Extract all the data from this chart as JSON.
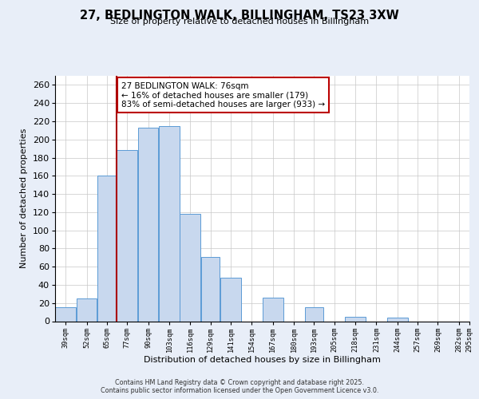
{
  "title": "27, BEDLINGTON WALK, BILLINGHAM, TS23 3XW",
  "subtitle": "Size of property relative to detached houses in Billingham",
  "xlabel": "Distribution of detached houses by size in Billingham",
  "ylabel": "Number of detached properties",
  "bar_lefts": [
    39,
    52,
    65,
    77,
    90,
    103,
    116,
    129,
    141,
    154,
    167,
    180,
    193,
    205,
    218,
    231,
    244,
    257,
    269,
    282
  ],
  "bar_widths": [
    13,
    13,
    12,
    13,
    13,
    13,
    13,
    12,
    13,
    13,
    13,
    13,
    12,
    13,
    13,
    13,
    13,
    12,
    13,
    13
  ],
  "bar_heights": [
    15,
    25,
    160,
    188,
    213,
    215,
    118,
    71,
    48,
    0,
    26,
    0,
    15,
    0,
    5,
    0,
    4,
    0,
    0,
    0
  ],
  "bar_color": "#c8d8ee",
  "bar_edge_color": "#5b9bd5",
  "marker_x": 77,
  "marker_color": "#aa0000",
  "ylim": [
    0,
    270
  ],
  "xlim": [
    39,
    295
  ],
  "yticks": [
    0,
    20,
    40,
    60,
    80,
    100,
    120,
    140,
    160,
    180,
    200,
    220,
    240,
    260
  ],
  "annotation_text_line1": "27 BEDLINGTON WALK: 76sqm",
  "annotation_text_line2": "← 16% of detached houses are smaller (179)",
  "annotation_text_line3": "83% of semi-detached houses are larger (933) →",
  "footer_line1": "Contains HM Land Registry data © Crown copyright and database right 2025.",
  "footer_line2": "Contains public sector information licensed under the Open Government Licence v3.0.",
  "bg_color": "#e8eef8",
  "plot_bg_color": "#ffffff",
  "grid_color": "#c8c8c8",
  "tick_labels": [
    "39sqm",
    "52sqm",
    "65sqm",
    "77sqm",
    "90sqm",
    "103sqm",
    "116sqm",
    "129sqm",
    "141sqm",
    "154sqm",
    "167sqm",
    "180sqm",
    "193sqm",
    "205sqm",
    "218sqm",
    "231sqm",
    "244sqm",
    "257sqm",
    "269sqm",
    "282sqm",
    "295sqm"
  ]
}
